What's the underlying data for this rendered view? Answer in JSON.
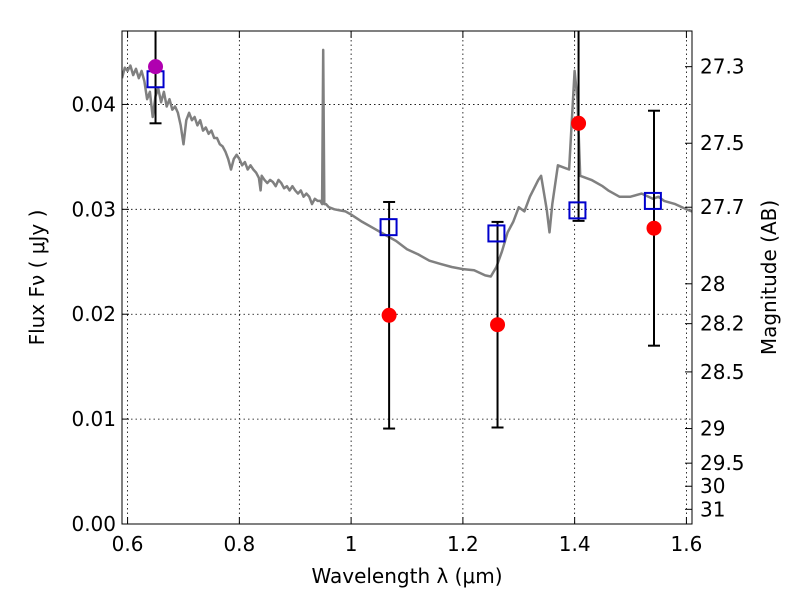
{
  "chart_data": {
    "type": "scatter",
    "xlabel": "Wavelength  λ (μm)",
    "ylabel": "Flux  Fν  ( μJy )",
    "y2label": "Magnitude (AB)",
    "xlim": [
      0.59,
      1.61
    ],
    "ylim": [
      0.0,
      0.047
    ],
    "grid": true,
    "xticks": [
      {
        "value": 0.6,
        "label": "0.6"
      },
      {
        "value": 0.8,
        "label": "0.8"
      },
      {
        "value": 1.0,
        "label": "1"
      },
      {
        "value": 1.2,
        "label": "1.2"
      },
      {
        "value": 1.4,
        "label": "1.4"
      },
      {
        "value": 1.6,
        "label": "1.6"
      }
    ],
    "yticks": [
      {
        "value": 0.0,
        "label": "0.00"
      },
      {
        "value": 0.01,
        "label": "0.01"
      },
      {
        "value": 0.02,
        "label": "0.02"
      },
      {
        "value": 0.03,
        "label": "0.03"
      },
      {
        "value": 0.04,
        "label": "0.04"
      }
    ],
    "y2ticks": [
      {
        "label": "27.3",
        "flux": 0.0436
      },
      {
        "label": "27.5",
        "flux": 0.0363
      },
      {
        "label": "27.7",
        "flux": 0.0302
      },
      {
        "label": "28",
        "flux": 0.0229
      },
      {
        "label": "28.2",
        "flux": 0.0191
      },
      {
        "label": "28.5",
        "flux": 0.0145
      },
      {
        "label": "29",
        "flux": 0.0091
      },
      {
        "label": "29.5",
        "flux": 0.0058
      },
      {
        "label": "30",
        "flux": 0.0036
      },
      {
        "label": "31",
        "flux": 0.0014
      }
    ],
    "series": [
      {
        "kind": "spectrum",
        "color": "#808080",
        "points": [
          [
            0.59,
            0.0425
          ],
          [
            0.595,
            0.0435
          ],
          [
            0.6,
            0.0432
          ],
          [
            0.605,
            0.0437
          ],
          [
            0.61,
            0.0428
          ],
          [
            0.615,
            0.0434
          ],
          [
            0.62,
            0.0425
          ],
          [
            0.625,
            0.0432
          ],
          [
            0.63,
            0.0422
          ],
          [
            0.635,
            0.0405
          ],
          [
            0.64,
            0.0412
          ],
          [
            0.645,
            0.0388
          ],
          [
            0.65,
            0.0408
          ],
          [
            0.655,
            0.0415
          ],
          [
            0.66,
            0.0402
          ],
          [
            0.665,
            0.0412
          ],
          [
            0.67,
            0.0398
          ],
          [
            0.675,
            0.0405
          ],
          [
            0.68,
            0.0395
          ],
          [
            0.685,
            0.0398
          ],
          [
            0.69,
            0.0392
          ],
          [
            0.695,
            0.038
          ],
          [
            0.7,
            0.0362
          ],
          [
            0.705,
            0.0385
          ],
          [
            0.71,
            0.0392
          ],
          [
            0.715,
            0.0385
          ],
          [
            0.72,
            0.0388
          ],
          [
            0.725,
            0.038
          ],
          [
            0.73,
            0.0385
          ],
          [
            0.735,
            0.0375
          ],
          [
            0.74,
            0.0378
          ],
          [
            0.745,
            0.0372
          ],
          [
            0.75,
            0.0375
          ],
          [
            0.755,
            0.0368
          ],
          [
            0.76,
            0.0368
          ],
          [
            0.765,
            0.0362
          ],
          [
            0.77,
            0.036
          ],
          [
            0.775,
            0.0355
          ],
          [
            0.78,
            0.0348
          ],
          [
            0.785,
            0.0338
          ],
          [
            0.79,
            0.0348
          ],
          [
            0.795,
            0.0352
          ],
          [
            0.8,
            0.0348
          ],
          [
            0.805,
            0.0342
          ],
          [
            0.81,
            0.0345
          ],
          [
            0.815,
            0.0338
          ],
          [
            0.82,
            0.0342
          ],
          [
            0.825,
            0.0338
          ],
          [
            0.83,
            0.0335
          ],
          [
            0.835,
            0.033
          ],
          [
            0.838,
            0.0318
          ],
          [
            0.84,
            0.0332
          ],
          [
            0.845,
            0.0328
          ],
          [
            0.85,
            0.0325
          ],
          [
            0.855,
            0.0328
          ],
          [
            0.86,
            0.0326
          ],
          [
            0.865,
            0.0322
          ],
          [
            0.87,
            0.0328
          ],
          [
            0.875,
            0.0325
          ],
          [
            0.88,
            0.032
          ],
          [
            0.885,
            0.0322
          ],
          [
            0.89,
            0.0318
          ],
          [
            0.895,
            0.0322
          ],
          [
            0.9,
            0.0318
          ],
          [
            0.905,
            0.0315
          ],
          [
            0.91,
            0.0318
          ],
          [
            0.915,
            0.0312
          ],
          [
            0.92,
            0.0315
          ],
          [
            0.925,
            0.0312
          ],
          [
            0.93,
            0.0305
          ],
          [
            0.935,
            0.031
          ],
          [
            0.94,
            0.0308
          ],
          [
            0.945,
            0.0308
          ],
          [
            0.948,
            0.0305
          ],
          [
            0.95,
            0.0452
          ],
          [
            0.952,
            0.0305
          ],
          [
            0.955,
            0.0305
          ],
          [
            0.96,
            0.0302
          ],
          [
            0.97,
            0.03
          ],
          [
            0.98,
            0.0299
          ],
          [
            0.99,
            0.0298
          ],
          [
            1.0,
            0.0295
          ],
          [
            1.02,
            0.0288
          ],
          [
            1.04,
            0.0282
          ],
          [
            1.06,
            0.0276
          ],
          [
            1.08,
            0.027
          ],
          [
            1.1,
            0.0262
          ],
          [
            1.12,
            0.0257
          ],
          [
            1.14,
            0.0251
          ],
          [
            1.16,
            0.0248
          ],
          [
            1.18,
            0.0245
          ],
          [
            1.2,
            0.0243
          ],
          [
            1.22,
            0.0242
          ],
          [
            1.24,
            0.0237
          ],
          [
            1.25,
            0.0236
          ],
          [
            1.26,
            0.0245
          ],
          [
            1.27,
            0.026
          ],
          [
            1.28,
            0.0278
          ],
          [
            1.29,
            0.0288
          ],
          [
            1.3,
            0.0302
          ],
          [
            1.31,
            0.0298
          ],
          [
            1.32,
            0.0312
          ],
          [
            1.335,
            0.0328
          ],
          [
            1.34,
            0.0332
          ],
          [
            1.35,
            0.03
          ],
          [
            1.355,
            0.0278
          ],
          [
            1.36,
            0.0305
          ],
          [
            1.37,
            0.0342
          ],
          [
            1.38,
            0.034
          ],
          [
            1.39,
            0.0338
          ],
          [
            1.4,
            0.0432
          ],
          [
            1.405,
            0.0405
          ],
          [
            1.41,
            0.0332
          ],
          [
            1.43,
            0.0328
          ],
          [
            1.45,
            0.0322
          ],
          [
            1.46,
            0.0318
          ],
          [
            1.47,
            0.0315
          ],
          [
            1.48,
            0.0312
          ],
          [
            1.5,
            0.0312
          ],
          [
            1.52,
            0.0315
          ],
          [
            1.54,
            0.031
          ],
          [
            1.55,
            0.0312
          ],
          [
            1.56,
            0.0308
          ],
          [
            1.58,
            0.0305
          ],
          [
            1.6,
            0.03
          ],
          [
            1.61,
            0.0298
          ]
        ]
      },
      {
        "kind": "model-photometry",
        "marker": "open-square",
        "color": "#0000cc",
        "x": [
          0.65,
          1.067,
          1.26,
          1.405,
          1.54
        ],
        "y": [
          0.0424,
          0.0283,
          0.0277,
          0.0299,
          0.0308
        ]
      },
      {
        "kind": "observed",
        "marker": "filled-circle",
        "color": "#ff0000",
        "x": [
          1.068,
          1.262,
          1.407,
          1.542
        ],
        "y": [
          0.0199,
          0.019,
          0.0382,
          0.0282
        ],
        "yerr": [
          [
            0.0108,
            0.0108
          ],
          [
            0.0098,
            0.0098
          ],
          [
            0.0093,
            0.0093
          ],
          [
            0.0112,
            0.0112
          ]
        ]
      },
      {
        "kind": "observed",
        "marker": "filled-circle",
        "color": "#b000b0",
        "x": [
          0.65
        ],
        "y": [
          0.0436
        ],
        "yerr": [
          [
            0.0054,
            0.0054
          ]
        ]
      }
    ]
  }
}
